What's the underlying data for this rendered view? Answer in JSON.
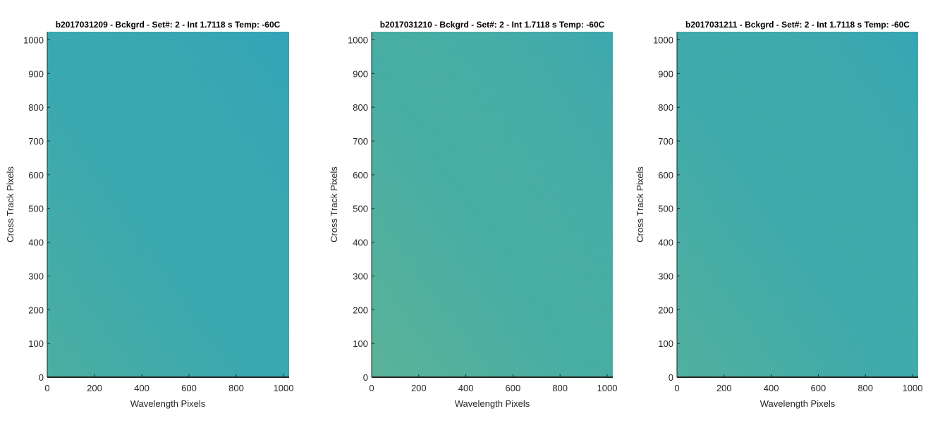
{
  "chart_data": [
    {
      "type": "heatmap",
      "title": "b2017031209 - Bckgrd - Set#: 2 - Int 1.7118 s Temp: -60C",
      "xlabel": "Wavelength Pixels",
      "ylabel": "Cross Track Pixels",
      "xlim": [
        0,
        1024
      ],
      "ylim": [
        0,
        1024
      ],
      "xticks": [
        0,
        200,
        400,
        600,
        800,
        1000
      ],
      "yticks": [
        0,
        100,
        200,
        300,
        400,
        500,
        600,
        700,
        800,
        900,
        1000
      ],
      "grid": false,
      "colors": {
        "base": "#24a4b4",
        "light": "#54b48c",
        "dark": "#1e9cbe"
      }
    },
    {
      "type": "heatmap",
      "title": "b2017031210 - Bckgrd - Set#: 2 - Int 1.7118 s Temp: -60C",
      "xlabel": "Wavelength Pixels",
      "ylabel": "Cross Track Pixels",
      "xlim": [
        0,
        1024
      ],
      "ylim": [
        0,
        1024
      ],
      "xticks": [
        0,
        200,
        400,
        600,
        800,
        1000
      ],
      "yticks": [
        0,
        100,
        200,
        300,
        400,
        500,
        600,
        700,
        800,
        900,
        1000
      ],
      "grid": false,
      "colors": {
        "base": "#32aaa6",
        "light": "#64b884",
        "dark": "#22a0b8"
      }
    },
    {
      "type": "heatmap",
      "title": "b2017031211 - Bckgrd - Set#: 2 - Int 1.7118 s Temp: -60C",
      "xlabel": "Wavelength Pixels",
      "ylabel": "Cross Track Pixels",
      "xlim": [
        0,
        1024
      ],
      "ylim": [
        0,
        1024
      ],
      "xticks": [
        0,
        200,
        400,
        600,
        800,
        1000
      ],
      "yticks": [
        0,
        100,
        200,
        300,
        400,
        500,
        600,
        700,
        800,
        900,
        1000
      ],
      "grid": false,
      "colors": {
        "base": "#2aa6ae",
        "light": "#5ab68a",
        "dark": "#20a0ba"
      }
    }
  ]
}
